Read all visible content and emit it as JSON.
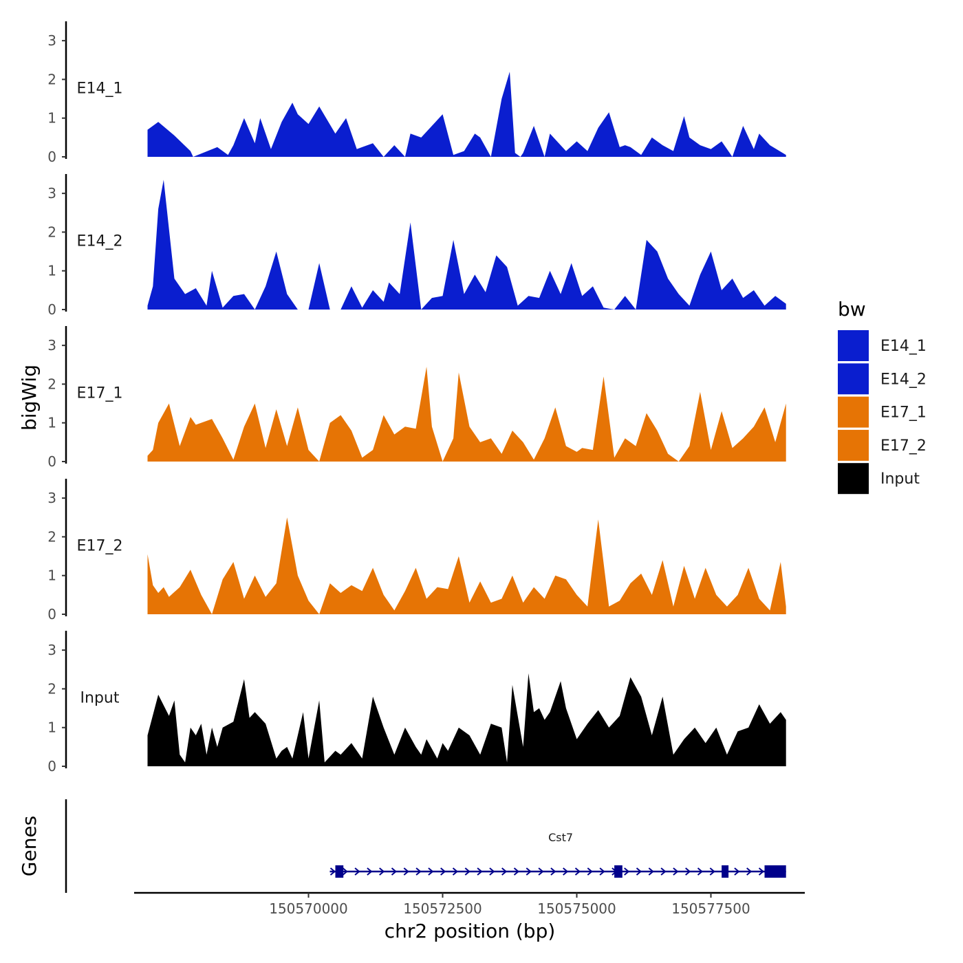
{
  "chart_data": {
    "type": "area",
    "title": "",
    "xlabel": "chr2 position (bp)",
    "ylabel": "bigWig",
    "gene_track_label": "Genes",
    "xlim": [
      150566750,
      150579250
    ],
    "x_ticks": [
      150570000,
      150572500,
      150575000,
      150577500
    ],
    "x_tick_labels": [
      "150570000",
      "150572500",
      "150575000",
      "150577500"
    ],
    "ylim": [
      0,
      3.5
    ],
    "y_ticks": [
      0,
      1,
      2,
      3
    ],
    "y_tick_labels": [
      "0",
      "1",
      "2",
      "3"
    ],
    "legend": {
      "title": "bw",
      "position": "right",
      "entries": [
        {
          "label": "E14_1",
          "color": "#0A1ECF"
        },
        {
          "label": "E14_2",
          "color": "#0A1ECF"
        },
        {
          "label": "E17_1",
          "color": "#E67405"
        },
        {
          "label": "E17_2",
          "color": "#E67405"
        },
        {
          "label": "Input",
          "color": "#000000"
        }
      ]
    },
    "series": [
      {
        "name": "E14_1",
        "color": "#0A1ECF",
        "x": [
          150567000,
          150567200,
          150567500,
          150567800,
          150567850,
          150568300,
          150568500,
          150568600,
          150568800,
          150569000,
          150569100,
          150569300,
          150569500,
          150569700,
          150569800,
          150570000,
          150570200,
          150570500,
          150570700,
          150570900,
          150571000,
          150571200,
          150571400,
          150571600,
          150571800,
          150571900,
          150572100,
          150572300,
          150572500,
          150572700,
          150572900,
          150573100,
          150573200,
          150573400,
          150573600,
          150573750,
          150573850,
          150573950,
          150574000,
          150574200,
          150574400,
          150574500,
          150574800,
          150575000,
          150575200,
          150575400,
          150575600,
          150575800,
          150575900,
          150576000,
          150576200,
          150576400,
          150576600,
          150576800,
          150577000,
          150577100,
          150577300,
          150577500,
          150577700,
          150577900,
          150578100,
          150578300,
          150578400,
          150578600,
          150578900
        ],
        "values": [
          0.7,
          0.9,
          0.55,
          0.15,
          0,
          0.25,
          0.05,
          0.3,
          1.0,
          0.35,
          1.0,
          0.2,
          0.9,
          1.4,
          1.1,
          0.85,
          1.3,
          0.6,
          1.0,
          0.2,
          0.25,
          0.35,
          0,
          0.3,
          0,
          0.6,
          0.5,
          0.8,
          1.1,
          0.05,
          0.15,
          0.6,
          0.5,
          0,
          1.5,
          2.2,
          0.1,
          0,
          0.1,
          0.8,
          0,
          0.6,
          0.15,
          0.4,
          0.15,
          0.75,
          1.15,
          0.25,
          0.3,
          0.25,
          0.05,
          0.5,
          0.3,
          0.15,
          1.05,
          0.5,
          0.3,
          0.2,
          0.4,
          0,
          0.8,
          0.2,
          0.6,
          0.3,
          0.05
        ]
      },
      {
        "name": "E14_2",
        "color": "#0A1ECF",
        "x": [
          150567000,
          150567100,
          150567200,
          150567300,
          150567500,
          150567700,
          150567900,
          150568100,
          150568200,
          150568400,
          150568600,
          150568800,
          150569000,
          150569200,
          150569400,
          150569600,
          150569800,
          150570000,
          150570200,
          150570400,
          150570600,
          150570800,
          150571000,
          150571200,
          150571400,
          150571500,
          150571700,
          150571900,
          150572100,
          150572300,
          150572500,
          150572700,
          150572900,
          150573100,
          150573300,
          150573500,
          150573700,
          150573900,
          150574100,
          150574300,
          150574500,
          150574700,
          150574900,
          150575100,
          150575300,
          150575500,
          150575700,
          150575900,
          150576100,
          150576300,
          150576500,
          150576700,
          150576900,
          150577100,
          150577300,
          150577500,
          150577700,
          150577900,
          150578100,
          150578300,
          150578500,
          150578700,
          150578900
        ],
        "values": [
          0.1,
          0.6,
          2.6,
          3.35,
          0.8,
          0.4,
          0.55,
          0.1,
          1.0,
          0.05,
          0.35,
          0.4,
          0,
          0.6,
          1.5,
          0.4,
          0,
          0,
          1.2,
          0,
          0,
          0.6,
          0.05,
          0.5,
          0.2,
          0.7,
          0.4,
          2.25,
          0,
          0.3,
          0.35,
          1.8,
          0.4,
          0.9,
          0.45,
          1.4,
          1.1,
          0.1,
          0.35,
          0.3,
          1.0,
          0.4,
          1.2,
          0.35,
          0.6,
          0.05,
          0,
          0.35,
          0,
          1.8,
          1.5,
          0.8,
          0.4,
          0.1,
          0.9,
          1.5,
          0.5,
          0.8,
          0.3,
          0.5,
          0.1,
          0.35,
          0.15
        ]
      },
      {
        "name": "E17_1",
        "color": "#E67405",
        "x": [
          150567000,
          150567100,
          150567200,
          150567400,
          150567600,
          150567800,
          150567900,
          150568200,
          150568400,
          150568600,
          150568800,
          150569000,
          150569200,
          150569400,
          150569600,
          150569800,
          150570000,
          150570200,
          150570400,
          150570600,
          150570800,
          150571000,
          150571200,
          150571400,
          150571600,
          150571800,
          150572000,
          150572200,
          150572300,
          150572500,
          150572700,
          150572800,
          150573000,
          150573200,
          150573400,
          150573600,
          150573800,
          150574000,
          150574200,
          150574400,
          150574600,
          150574800,
          150575000,
          150575100,
          150575300,
          150575500,
          150575700,
          150575900,
          150576100,
          150576300,
          150576500,
          150576700,
          150576900,
          150577100,
          150577300,
          150577500,
          150577700,
          150577900,
          150578100,
          150578300,
          150578500,
          150578700,
          150578900
        ],
        "values": [
          0.15,
          0.3,
          1.0,
          1.5,
          0.4,
          1.15,
          0.95,
          1.1,
          0.6,
          0.05,
          0.9,
          1.5,
          0.35,
          1.35,
          0.4,
          1.4,
          0.3,
          0,
          1.0,
          1.2,
          0.8,
          0.1,
          0.3,
          1.2,
          0.7,
          0.9,
          0.85,
          2.45,
          0.9,
          0,
          0.6,
          2.3,
          0.9,
          0.5,
          0.6,
          0.2,
          0.8,
          0.5,
          0.05,
          0.6,
          1.4,
          0.4,
          0.25,
          0.35,
          0.3,
          2.2,
          0.1,
          0.6,
          0.4,
          1.25,
          0.8,
          0.2,
          0,
          0.4,
          1.8,
          0.3,
          1.3,
          0.35,
          0.6,
          0.9,
          1.4,
          0.5,
          1.5
        ]
      },
      {
        "name": "E17_2",
        "color": "#E67405",
        "x": [
          150567000,
          150567100,
          150567200,
          150567300,
          150567400,
          150567600,
          150567800,
          150568000,
          150568200,
          150568400,
          150568600,
          150568800,
          150569000,
          150569200,
          150569400,
          150569600,
          150569800,
          150570000,
          150570200,
          150570400,
          150570600,
          150570800,
          150571000,
          150571200,
          150571400,
          150571600,
          150571800,
          150572000,
          150572200,
          150572400,
          150572600,
          150572800,
          150573000,
          150573200,
          150573400,
          150573600,
          150573800,
          150574000,
          150574200,
          150574400,
          150574600,
          150574800,
          150575000,
          150575200,
          150575400,
          150575600,
          150575800,
          150576000,
          150576200,
          150576400,
          150576600,
          150576800,
          150577000,
          150577200,
          150577400,
          150577600,
          150577800,
          150578000,
          150578200,
          150578400,
          150578600,
          150578800,
          150578900
        ],
        "values": [
          1.55,
          0.75,
          0.55,
          0.7,
          0.45,
          0.7,
          1.15,
          0.5,
          0,
          0.9,
          1.35,
          0.4,
          1.0,
          0.45,
          0.8,
          2.5,
          1.0,
          0.35,
          0,
          0.8,
          0.55,
          0.75,
          0.6,
          1.2,
          0.5,
          0.1,
          0.6,
          1.2,
          0.4,
          0.7,
          0.65,
          1.5,
          0.3,
          0.85,
          0.3,
          0.4,
          1.0,
          0.3,
          0.7,
          0.4,
          1.0,
          0.9,
          0.5,
          0.2,
          2.45,
          0.2,
          0.35,
          0.8,
          1.05,
          0.5,
          1.4,
          0.2,
          1.25,
          0.4,
          1.2,
          0.5,
          0.2,
          0.5,
          1.2,
          0.4,
          0.1,
          1.35,
          0.2
        ]
      },
      {
        "name": "Input",
        "color": "#000000",
        "x": [
          150567000,
          150567200,
          150567400,
          150567500,
          150567600,
          150567700,
          150567800,
          150567900,
          150568000,
          150568100,
          150568200,
          150568300,
          150568400,
          150568600,
          150568800,
          150568900,
          150569000,
          150569200,
          150569400,
          150569500,
          150569600,
          150569700,
          150569900,
          150570000,
          150570200,
          150570300,
          150570500,
          150570600,
          150570800,
          150571000,
          150571200,
          150571400,
          150571600,
          150571800,
          150572000,
          150572100,
          150572200,
          150572400,
          150572500,
          150572600,
          150572800,
          150573000,
          150573200,
          150573400,
          150573600,
          150573700,
          150573800,
          150574000,
          150574100,
          150574200,
          150574300,
          150574400,
          150574500,
          150574700,
          150574800,
          150575000,
          150575200,
          150575400,
          150575600,
          150575800,
          150576000,
          150576200,
          150576400,
          150576600,
          150576800,
          150577000,
          150577200,
          150577400,
          150577600,
          150577800,
          150578000,
          150578200,
          150578400,
          150578600,
          150578800,
          150578900
        ],
        "values": [
          0.8,
          1.85,
          1.3,
          1.7,
          0.3,
          0.1,
          1.0,
          0.8,
          1.1,
          0.3,
          1.0,
          0.5,
          1.0,
          1.15,
          2.25,
          1.25,
          1.4,
          1.1,
          0.2,
          0.4,
          0.5,
          0.2,
          1.4,
          0.2,
          1.7,
          0.1,
          0.4,
          0.3,
          0.6,
          0.2,
          1.8,
          1.0,
          0.3,
          1.0,
          0.5,
          0.3,
          0.7,
          0.2,
          0.6,
          0.4,
          1.0,
          0.8,
          0.3,
          1.1,
          1.0,
          0.1,
          2.1,
          0.5,
          2.4,
          1.4,
          1.5,
          1.2,
          1.4,
          2.2,
          1.5,
          0.7,
          1.1,
          1.45,
          1.0,
          1.3,
          2.3,
          1.8,
          0.8,
          1.8,
          0.3,
          0.7,
          1.0,
          0.6,
          1.0,
          0.3,
          0.9,
          1.0,
          1.6,
          1.1,
          1.4,
          1.2
        ]
      }
    ],
    "gene": {
      "name": "Cst7",
      "start": 150570500,
      "end": 150578900,
      "strand": "+",
      "color": "#00008B",
      "exons": [
        [
          150570500,
          150570650
        ],
        [
          150575700,
          150575850
        ],
        [
          150577700,
          150577800
        ],
        [
          150578500,
          150578900
        ]
      ]
    }
  }
}
